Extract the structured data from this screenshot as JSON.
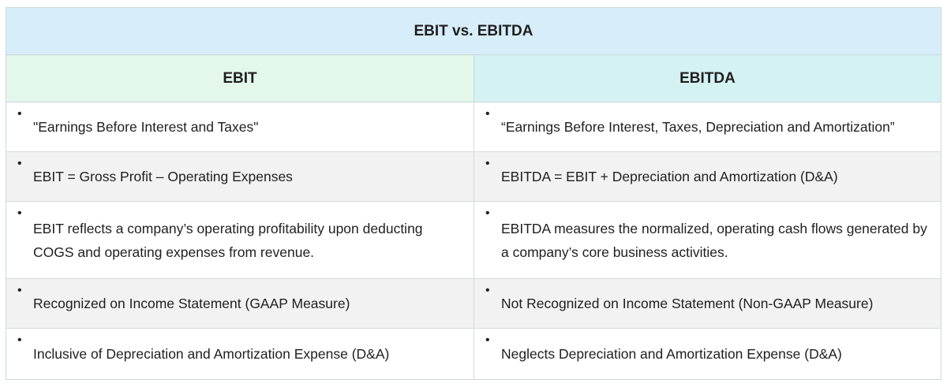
{
  "title": "EBIT vs. EBITDA",
  "columns": {
    "left": "EBIT",
    "right": "EBITDA"
  },
  "bullet": "•",
  "rows": [
    {
      "left": "\"Earnings Before Interest and Taxes\"",
      "right": "“Earnings Before Interest, Taxes, Depreciation and Amortization”"
    },
    {
      "left": "EBIT = Gross Profit – Operating Expenses",
      "right": "EBITDA = EBIT + Depreciation and Amortization (D&A)"
    },
    {
      "left": "EBIT reflects a company’s operating profitability upon deducting COGS and operating expenses from revenue.",
      "right": "EBITDA measures the normalized, operating cash flows generated by a company’s core business activities."
    },
    {
      "left": "Recognized on Income Statement (GAAP Measure)",
      "right": "Not Recognized on Income Statement (Non-GAAP Measure)"
    },
    {
      "left": "Inclusive of Depreciation and Amortization Expense (D&A)",
      "right": "Neglects Depreciation and Amortization Expense (D&A)"
    }
  ]
}
